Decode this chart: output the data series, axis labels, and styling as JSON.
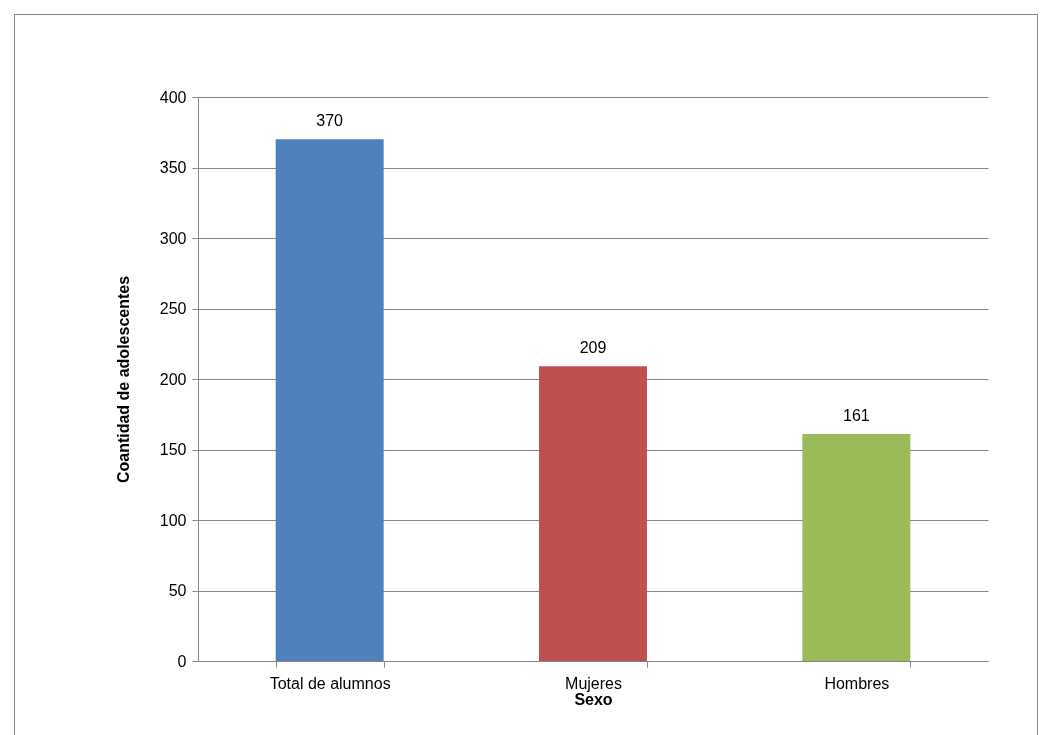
{
  "chart_data": {
    "type": "bar",
    "xlabel": "Sexo",
    "ylabel": "Coantidad de adolescentes",
    "categories": [
      "Total de alumnos",
      "Mujeres",
      "Hombres"
    ],
    "values": [
      370,
      209,
      161
    ],
    "colors": [
      "#4f81bd",
      "#c0504d",
      "#9bbb59"
    ],
    "ylim": [
      0,
      400
    ],
    "yticks": [
      0,
      50,
      100,
      150,
      200,
      250,
      300,
      350,
      400
    ],
    "grid": "y",
    "data_labels": true
  }
}
